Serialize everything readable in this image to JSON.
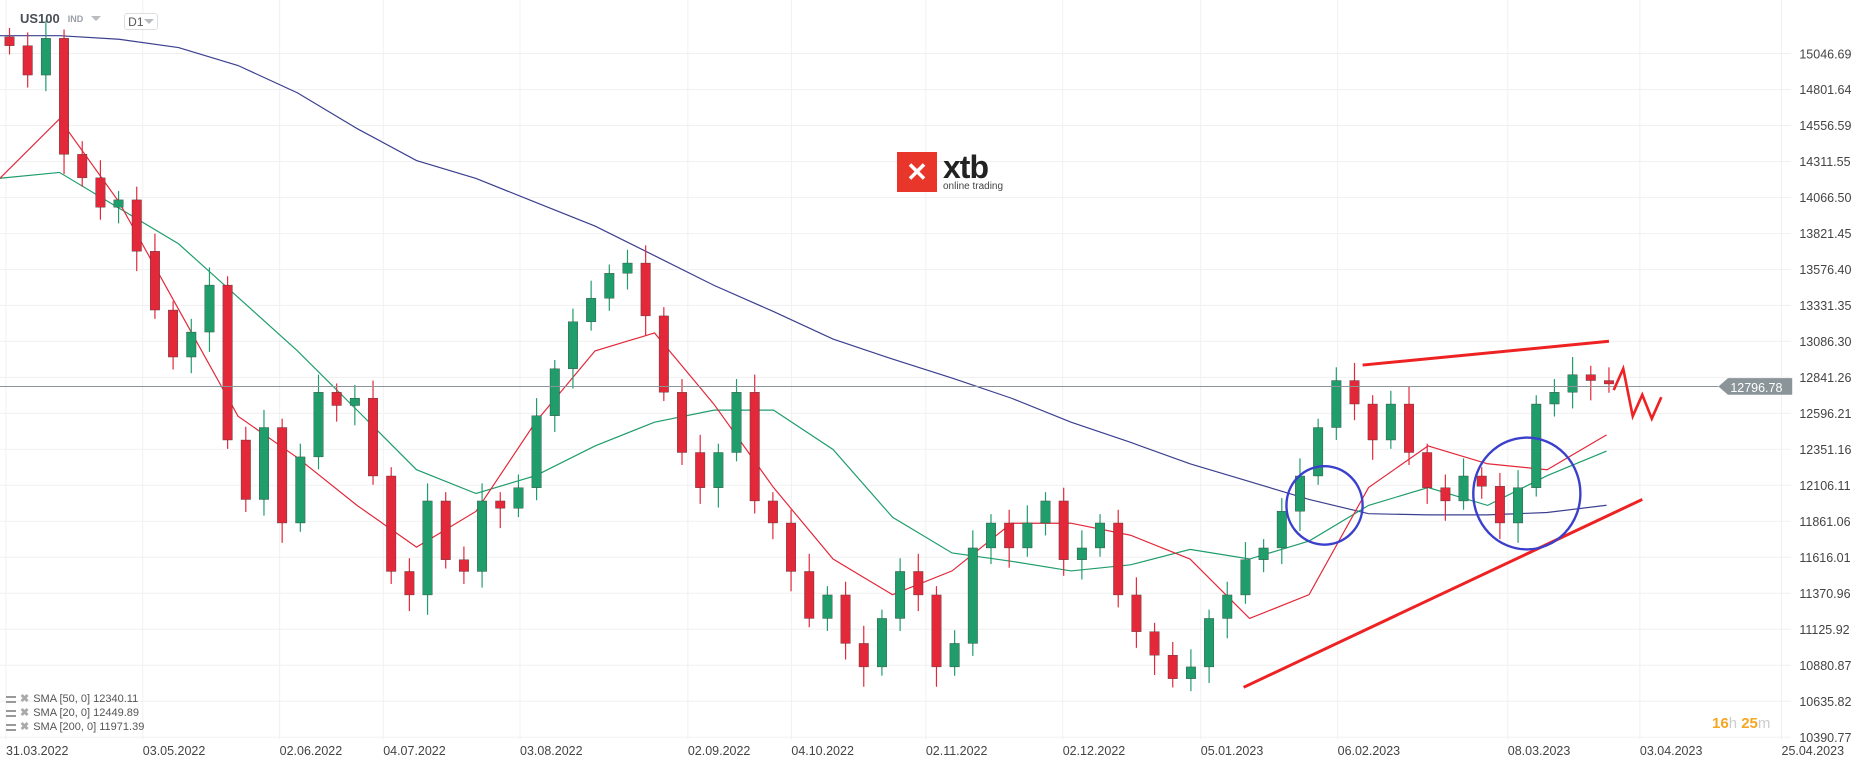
{
  "header": {
    "symbol": "US100",
    "instrument_type": "IND",
    "timeframe": "D1"
  },
  "logo": {
    "brand": "xtb",
    "tagline": "online trading"
  },
  "timer": {
    "hours": "16",
    "h": "h",
    "minutes": "25",
    "m": "m"
  },
  "legend": [
    {
      "label": "SMA [50, 0] 12340.11"
    },
    {
      "label": "SMA [20, 0] 12449.89"
    },
    {
      "label": "SMA [200, 0] 11971.39"
    }
  ],
  "colors": {
    "up": "#1f9d6b",
    "down": "#e3283a",
    "sma20": "#e3283a",
    "sma50": "#1f9d6b",
    "sma200": "#3b3f8f",
    "annotation_line": "#ee2222",
    "annotation_circle": "#3a3fcc",
    "price_badge": "#8a9499",
    "timer": "#f5a623"
  },
  "chart_data": {
    "type": "candlestick",
    "symbol": "US100",
    "timeframe": "D1",
    "current_price": "12796.78",
    "y_ticks": [
      "15046.69",
      "14801.64",
      "14556.59",
      "14311.55",
      "14066.50",
      "13821.45",
      "13576.40",
      "13331.35",
      "13086.30",
      "12841.26",
      "12596.21",
      "12351.16",
      "12106.11",
      "11861.06",
      "11616.01",
      "11370.96",
      "11125.92",
      "10880.87",
      "10635.82",
      "10390.77"
    ],
    "x_ticks": [
      "31.03.2022",
      "03.05.2022",
      "02.06.2022",
      "04.07.2022",
      "03.08.2022",
      "02.09.2022",
      "04.10.2022",
      "02.11.2022",
      "02.12.2022",
      "05.01.2023",
      "06.02.2023",
      "08.03.2023",
      "03.04.2023",
      "25.04.2023"
    ],
    "ylim": [
      10390.77,
      15046.69
    ],
    "grid": true,
    "closes": [
      15100,
      14900,
      15150,
      14360,
      14200,
      14000,
      14050,
      13700,
      13300,
      12980,
      13150,
      13470,
      12415,
      12010,
      12500,
      11850,
      12300,
      12740,
      12650,
      12700,
      12170,
      11520,
      11360,
      12000,
      11600,
      11520,
      12000,
      11950,
      12090,
      12580,
      12900,
      13220,
      13380,
      13550,
      13620,
      13260,
      12740,
      12330,
      12090,
      12330,
      12740,
      12000,
      11850,
      11520,
      11200,
      11360,
      11030,
      10870,
      11200,
      11520,
      11360,
      10870,
      11030,
      11680,
      11850,
      11680,
      11850,
      12000,
      11600,
      11680,
      11850,
      11360,
      11110,
      10950,
      10790,
      10870,
      11200,
      11360,
      11600,
      11680,
      11930,
      12170,
      12500,
      12820,
      12660,
      12415,
      12660,
      12330,
      12090,
      12000,
      12170,
      12100,
      11850,
      12090,
      12660,
      12740,
      12860,
      12820,
      12796.78
    ],
    "sma20": [
      14197,
      14601,
      14035,
      13306,
      12577,
      12294,
      11970,
      11686,
      11929,
      12537,
      13022,
      13144,
      12658,
      12091,
      11605,
      11362,
      11524,
      11848,
      11848,
      11767,
      11605,
      11200,
      11362,
      12091,
      12375,
      12253,
      12213,
      12450
    ],
    "sma50": [
      14197,
      14237,
      13994,
      13751,
      13387,
      13022,
      12618,
      12213,
      12051,
      12172,
      12375,
      12537,
      12618,
      12618,
      12350,
      11889,
      11646,
      11589,
      11524,
      11565,
      11670,
      11605,
      11727,
      11970,
      12091,
      11970,
      12172,
      12340
    ],
    "sma200": [
      15168,
      15168,
      15144,
      15087,
      14965,
      14779,
      14536,
      14318,
      14196,
      14034,
      13872,
      13670,
      13468,
      13290,
      13103,
      12966,
      12837,
      12699,
      12537,
      12399,
      12253,
      12132,
      12010,
      11913,
      11905,
      11905,
      11921,
      11971
    ]
  }
}
